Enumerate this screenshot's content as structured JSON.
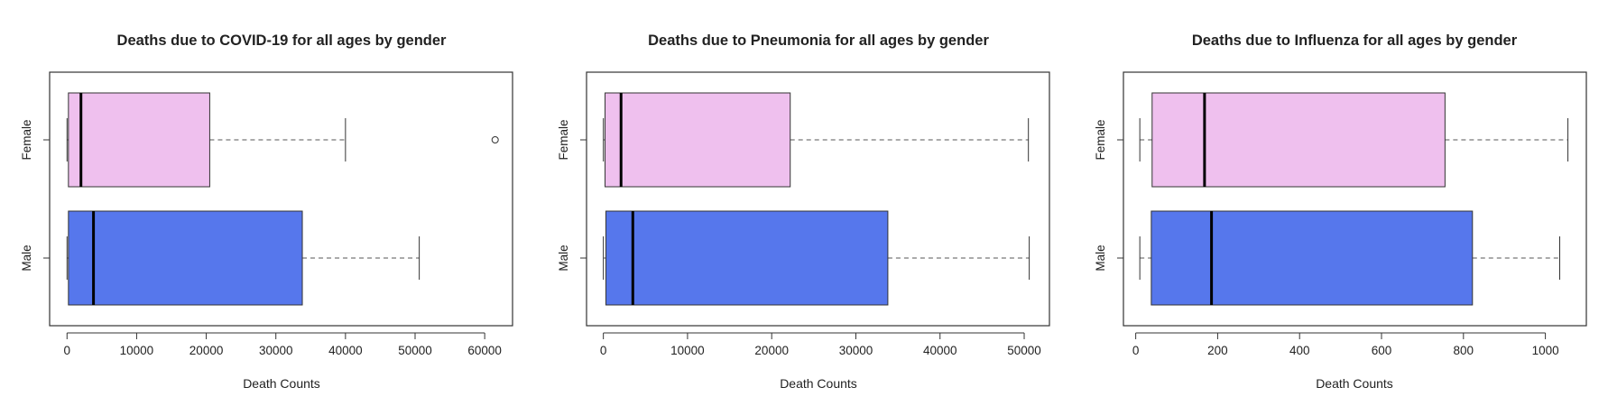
{
  "chart_data": [
    {
      "type": "boxplot",
      "orientation": "horizontal",
      "title": "Deaths due to COVID-19 for all ages by gender",
      "xlabel": "Death Counts",
      "ylabel": "",
      "xlim": [
        -2500,
        64000
      ],
      "xticks": [
        0,
        10000,
        20000,
        30000,
        40000,
        50000,
        60000
      ],
      "xtick_labels": [
        "0",
        "10000",
        "20000",
        "30000",
        "40000",
        "50000",
        "60000"
      ],
      "categories": [
        "Female",
        "Male"
      ],
      "series": [
        {
          "category": "Female",
          "color": "#EFC0EE",
          "min": 0,
          "q1": 200,
          "median": 2000,
          "q3": 20500,
          "max": 40000,
          "outliers": [
            61500
          ]
        },
        {
          "category": "Male",
          "color": "#5677EC",
          "min": 0,
          "q1": 200,
          "median": 3800,
          "q3": 33800,
          "max": 50600,
          "outliers": []
        }
      ],
      "grid": false,
      "legend": "none"
    },
    {
      "type": "boxplot",
      "orientation": "horizontal",
      "title": "Deaths due to Pneumonia for all ages by gender",
      "xlabel": "Death Counts",
      "ylabel": "",
      "xlim": [
        -2000,
        53000
      ],
      "xticks": [
        0,
        10000,
        20000,
        30000,
        40000,
        50000
      ],
      "xtick_labels": [
        "0",
        "10000",
        "20000",
        "30000",
        "40000",
        "50000"
      ],
      "categories": [
        "Female",
        "Male"
      ],
      "series": [
        {
          "category": "Female",
          "color": "#EFC0EE",
          "min": 0,
          "q1": 200,
          "median": 2100,
          "q3": 22200,
          "max": 50500,
          "outliers": []
        },
        {
          "category": "Male",
          "color": "#5677EC",
          "min": 0,
          "q1": 300,
          "median": 3500,
          "q3": 33800,
          "max": 50600,
          "outliers": []
        }
      ],
      "grid": false,
      "legend": "none"
    },
    {
      "type": "boxplot",
      "orientation": "horizontal",
      "title": "Deaths due to Influenza for all ages by gender",
      "xlabel": "Death Counts",
      "ylabel": "",
      "xlim": [
        -30,
        1100
      ],
      "xticks": [
        0,
        200,
        400,
        600,
        800,
        1000
      ],
      "xtick_labels": [
        "0",
        "200",
        "400",
        "600",
        "800",
        "1000"
      ],
      "categories": [
        "Female",
        "Male"
      ],
      "series": [
        {
          "category": "Female",
          "color": "#EFC0EE",
          "min": 10,
          "q1": 40,
          "median": 168,
          "q3": 755,
          "max": 1055,
          "outliers": []
        },
        {
          "category": "Male",
          "color": "#5677EC",
          "min": 10,
          "q1": 38,
          "median": 185,
          "q3": 822,
          "max": 1035,
          "outliers": []
        }
      ],
      "grid": false,
      "legend": "none"
    }
  ]
}
